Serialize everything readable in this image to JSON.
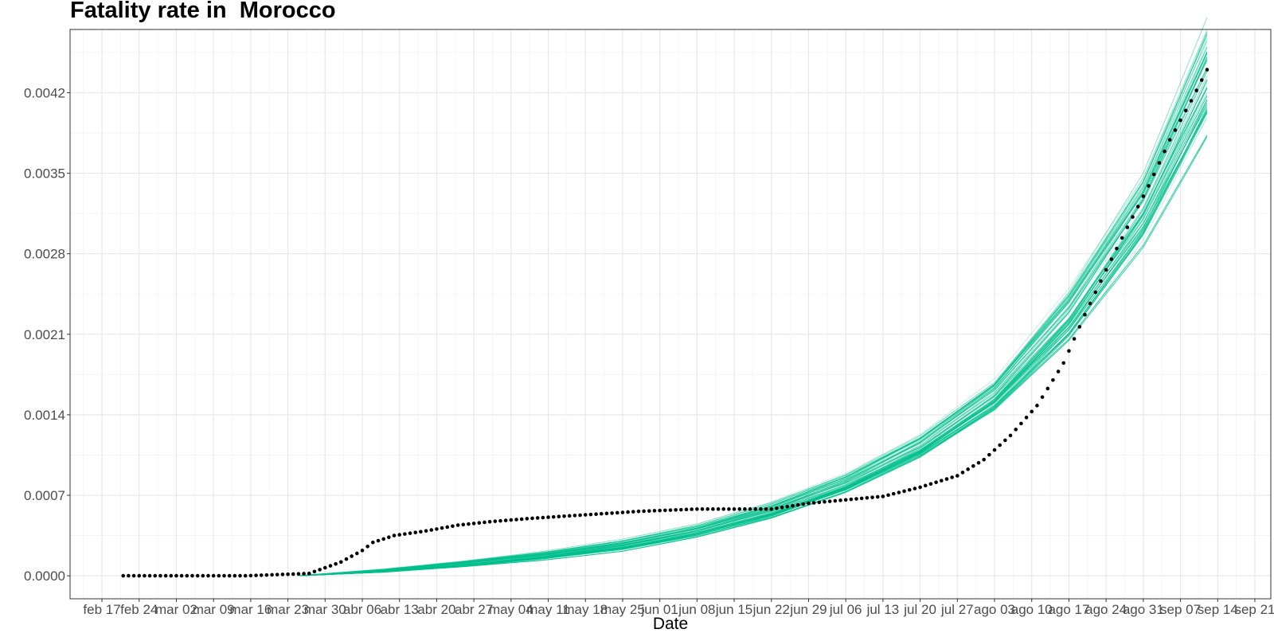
{
  "chart_data": {
    "type": "line",
    "title": "Fatality rate in  Morocco",
    "xlabel": "Date",
    "ylabel": "",
    "x_scale": "date",
    "xlim": [
      "2020-02-11",
      "2020-09-24"
    ],
    "ylim": [
      -0.0002,
      0.00475
    ],
    "grid": true,
    "legend": "none",
    "y_ticks": [
      0.0,
      0.0007,
      0.0014,
      0.0021,
      0.0028,
      0.0035,
      0.0042
    ],
    "y_tick_labels": [
      "0.0000",
      "0.0007",
      "0.0014",
      "0.0021",
      "0.0028",
      "0.0035",
      "0.0042"
    ],
    "x_ticks": [
      "2020-02-17",
      "2020-02-24",
      "2020-03-02",
      "2020-03-09",
      "2020-03-16",
      "2020-03-23",
      "2020-03-30",
      "2020-04-06",
      "2020-04-13",
      "2020-04-20",
      "2020-04-27",
      "2020-05-04",
      "2020-05-11",
      "2020-05-18",
      "2020-05-25",
      "2020-06-01",
      "2020-06-08",
      "2020-06-15",
      "2020-06-22",
      "2020-06-29",
      "2020-07-06",
      "2020-07-13",
      "2020-07-20",
      "2020-07-27",
      "2020-08-03",
      "2020-08-10",
      "2020-08-17",
      "2020-08-24",
      "2020-08-31",
      "2020-09-07",
      "2020-09-14",
      "2020-09-21"
    ],
    "x_tick_labels": [
      "feb 17",
      "feb 24",
      "mar 02",
      "mar 09",
      "mar 16",
      "mar 23",
      "mar 30",
      "abr 06",
      "abr 13",
      "abr 20",
      "abr 27",
      "may 04",
      "may 11",
      "may 18",
      "may 25",
      "jun 01",
      "jun 08",
      "jun 15",
      "jun 22",
      "jun 29",
      "jul 06",
      "jul 13",
      "jul 20",
      "jul 27",
      "ago 03",
      "ago 10",
      "ago 17",
      "ago 24",
      "ago 31",
      "sep 07",
      "sep 14",
      "sep 21"
    ],
    "series": [
      {
        "kind": "observed_points",
        "color": "#000000",
        "x": [
          "2020-02-21",
          "2020-03-01",
          "2020-03-15",
          "2020-03-27",
          "2020-03-30",
          "2020-04-02",
          "2020-04-06",
          "2020-04-08",
          "2020-04-12",
          "2020-04-18",
          "2020-04-24",
          "2020-04-30",
          "2020-05-08",
          "2020-05-18",
          "2020-05-28",
          "2020-06-08",
          "2020-06-22",
          "2020-06-29",
          "2020-07-06",
          "2020-07-13",
          "2020-07-20",
          "2020-07-27",
          "2020-08-01",
          "2020-08-06",
          "2020-08-11",
          "2020-08-16",
          "2020-08-20",
          "2020-08-24",
          "2020-08-28",
          "2020-09-01",
          "2020-09-05",
          "2020-09-09",
          "2020-09-12"
        ],
        "values": [
          0.0,
          0.0,
          0.0,
          2e-05,
          7e-05,
          0.00012,
          0.00022,
          0.00029,
          0.00035,
          0.00039,
          0.00044,
          0.00047,
          0.0005,
          0.00053,
          0.00056,
          0.00058,
          0.00058,
          0.00063,
          0.00066,
          0.00069,
          0.00077,
          0.00087,
          0.00101,
          0.00122,
          0.00148,
          0.00185,
          0.00227,
          0.00266,
          0.00303,
          0.00339,
          0.00379,
          0.00413,
          0.0044
        ]
      },
      {
        "kind": "simulation_ensemble",
        "color": "#00BF8C",
        "n_simulations": 60,
        "x": [
          "2020-03-25",
          "2020-04-10",
          "2020-04-25",
          "2020-05-10",
          "2020-05-25",
          "2020-06-08",
          "2020-06-22",
          "2020-07-06",
          "2020-07-20",
          "2020-08-03",
          "2020-08-17",
          "2020-08-31",
          "2020-09-12"
        ],
        "median": [
          0.0,
          4e-05,
          0.0001,
          0.00017,
          0.00026,
          0.00038,
          0.00055,
          0.00078,
          0.0011,
          0.00155,
          0.00225,
          0.0032,
          0.00435
        ],
        "lower": [
          0.0,
          3e-05,
          8e-05,
          0.00014,
          0.00022,
          0.00034,
          0.0005,
          0.00072,
          0.00102,
          0.00143,
          0.00205,
          0.0029,
          0.0039
        ],
        "upper": [
          0.0,
          6e-05,
          0.00013,
          0.00021,
          0.00031,
          0.00044,
          0.00063,
          0.00088,
          0.00122,
          0.0017,
          0.0025,
          0.0035,
          0.0048
        ]
      }
    ]
  }
}
